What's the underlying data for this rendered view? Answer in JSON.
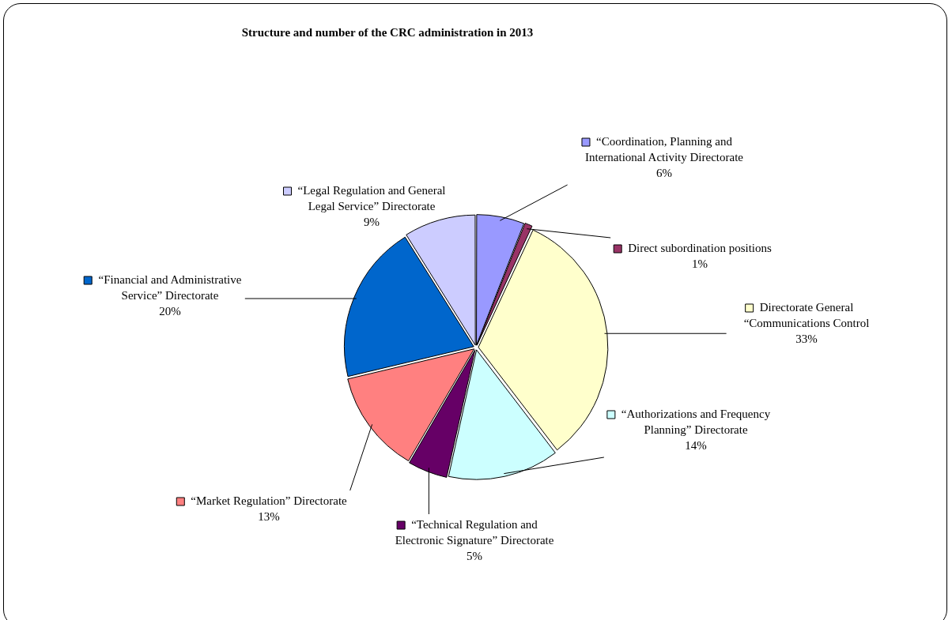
{
  "chart_data": {
    "type": "pie",
    "title": "Structure and number of the CRC administration in 2013",
    "categories": [
      "“Coordination, Planning and International Activity Directorate",
      "Direct subordination positions",
      "Directorate General “Communications Control",
      "“Authorizations and Frequency Planning” Directorate",
      "“Technical Regulation and Electronic Signature” Directorate",
      "“Market Regulation” Directorate",
      "“Financial and Administrative Service” Directorate",
      "“Legal Regulation and General Legal Service” Directorate"
    ],
    "values": [
      6,
      1,
      33,
      14,
      5,
      13,
      20,
      9
    ],
    "value_labels": [
      "6%",
      "1%",
      "33%",
      "14%",
      "5%",
      "13%",
      "20%",
      "9%"
    ],
    "colors": [
      "#9999ff",
      "#993366",
      "#ffffcc",
      "#ccffff",
      "#660066",
      "#ff8080",
      "#0066cc",
      "#ccccff"
    ],
    "legend": "right"
  }
}
